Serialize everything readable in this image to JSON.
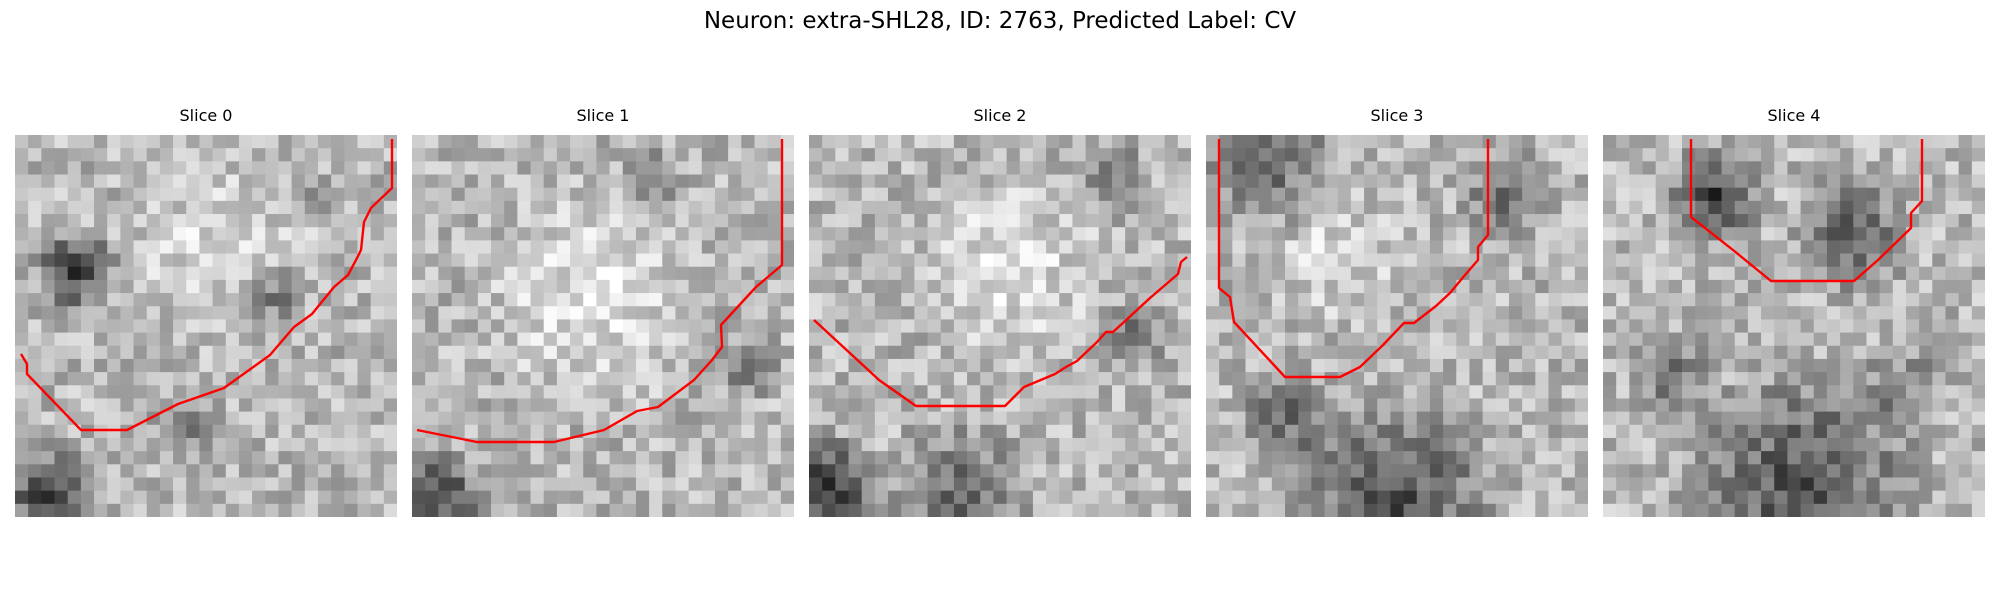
{
  "figure": {
    "title": "Neuron: extra-SHL28, ID: 2763, Predicted Label: CV"
  },
  "panels": [
    {
      "title": "Slice 0"
    },
    {
      "title": "Slice 1"
    },
    {
      "title": "Slice 2"
    },
    {
      "title": "Slice 3"
    },
    {
      "title": "Slice 4"
    }
  ],
  "colors": {
    "contour": "#ff0000",
    "background": "#ffffff"
  }
}
